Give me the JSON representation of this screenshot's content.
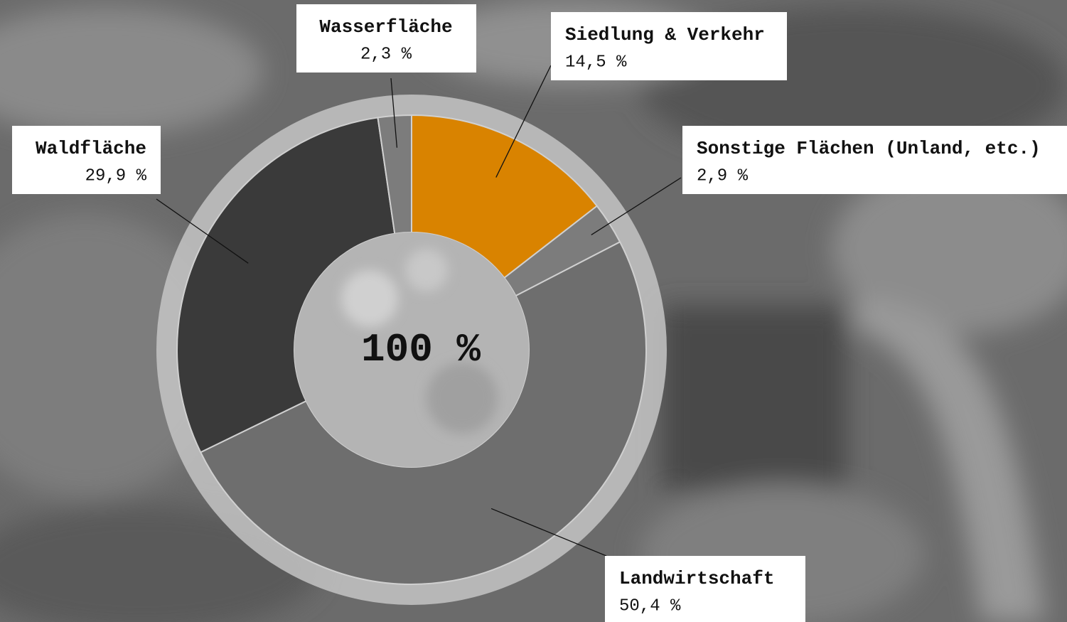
{
  "chart_data": {
    "type": "pie",
    "center_label": "100 %",
    "categories": [
      "Siedlung & Verkehr",
      "Sonstige Flächen (Unland, etc.)",
      "Landwirtschaft",
      "Waldfläche",
      "Wasserfläche"
    ],
    "values": [
      14.5,
      2.9,
      50.4,
      29.9,
      2.3
    ],
    "value_labels": [
      "14,5 %",
      "2,9 %",
      "50,4 %",
      "29,9 %",
      "2,3 %"
    ],
    "colors": [
      "#d98300",
      "#7c7c7c",
      "#6e6e6e",
      "#3a3a3a",
      "#7c7c7c"
    ]
  }
}
